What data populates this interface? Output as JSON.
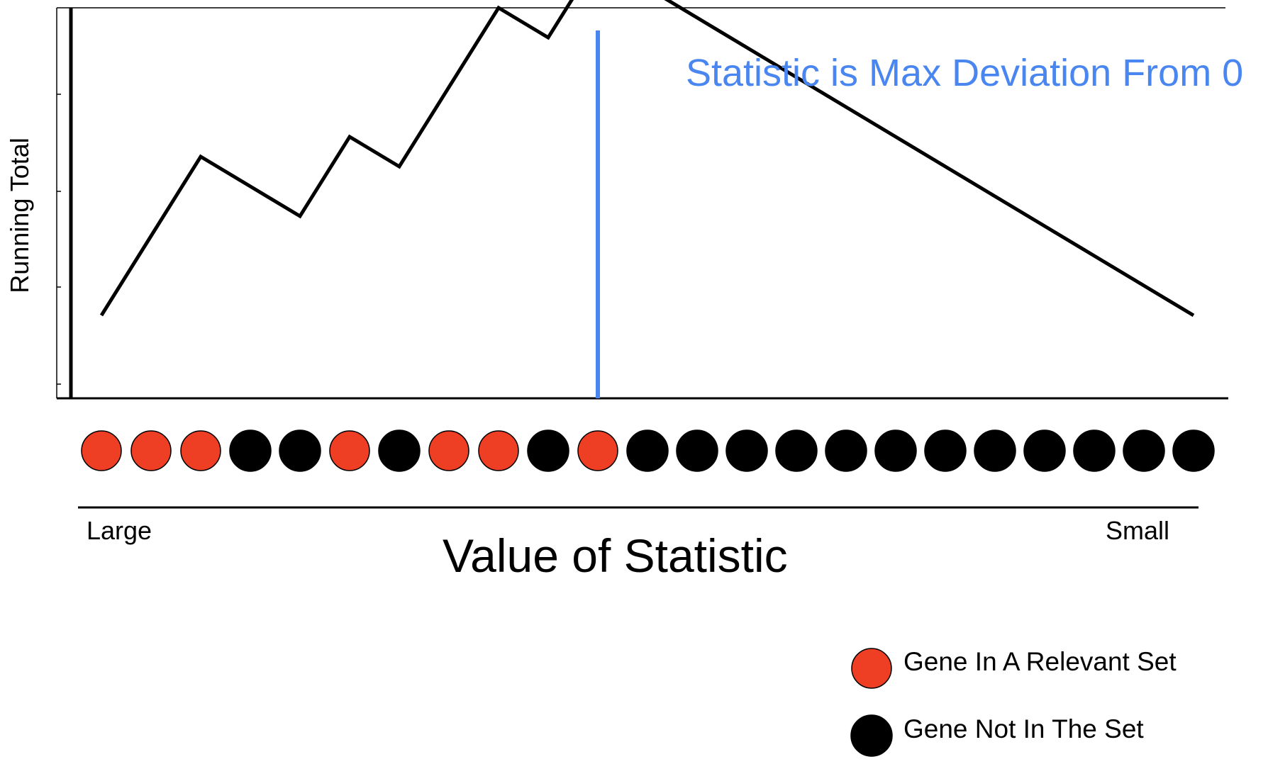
{
  "colors": {
    "in_set": "#ee3e24",
    "not_in_set": "#000000",
    "highlight": "#4a86f0",
    "line": "#000000"
  },
  "diagram": {
    "y_axis_label": "Running Total",
    "annotation": "Statistic is Max Deviation From 0",
    "x_axis_label": "Value of Statistic",
    "axis_start_label": "Large",
    "axis_end_label": "Small",
    "gene_sequence": [
      "in_set",
      "in_set",
      "in_set",
      "not_in_set",
      "not_in_set",
      "in_set",
      "not_in_set",
      "in_set",
      "in_set",
      "not_in_set",
      "in_set",
      "not_in_set",
      "not_in_set",
      "not_in_set",
      "not_in_set",
      "not_in_set",
      "not_in_set",
      "not_in_set",
      "not_in_set",
      "not_in_set",
      "not_in_set",
      "not_in_set",
      "not_in_set"
    ],
    "max_deviation_step": 10
  },
  "legend": [
    {
      "label": "Gene In A Relevant Set",
      "key": "in_set"
    },
    {
      "label": "Gene Not In The Set",
      "key": "not_in_set"
    }
  ]
}
